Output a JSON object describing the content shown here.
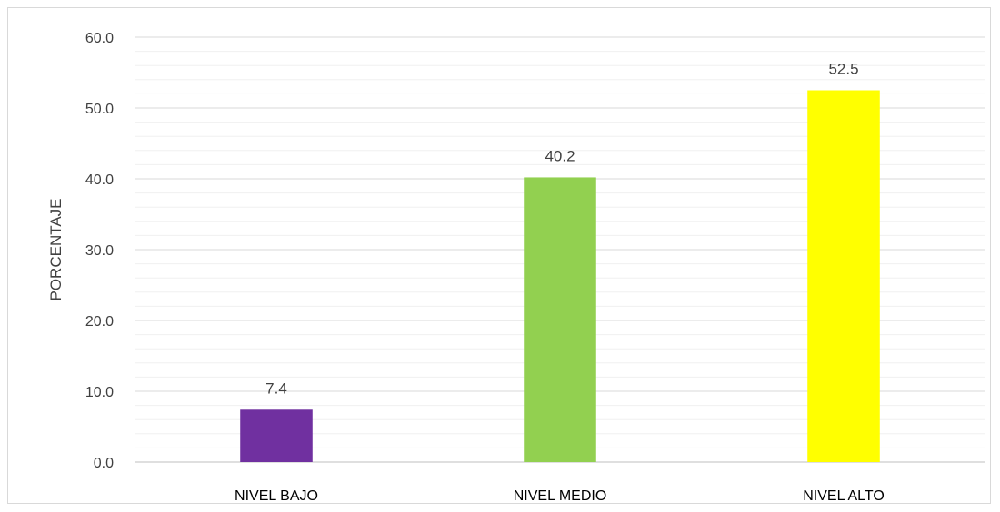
{
  "chart_data": {
    "type": "bar",
    "title": "",
    "xlabel": "",
    "ylabel": "PORCENTAJE",
    "categories": [
      "NIVEL BAJO",
      "NIVEL MEDIO",
      "NIVEL ALTO"
    ],
    "values": [
      7.4,
      40.2,
      52.5
    ],
    "data_labels": [
      "7.4",
      "40.2",
      "52.5"
    ],
    "bar_colors": [
      "#7030a0",
      "#92d050",
      "#ffff00"
    ],
    "ylim": [
      0,
      60
    ],
    "major_ticks": [
      0,
      10,
      20,
      30,
      40,
      50,
      60
    ],
    "tick_labels": [
      "0.0",
      "10.0",
      "20.0",
      "30.0",
      "40.0",
      "50.0",
      "60.0"
    ],
    "minor_tick_step": 2,
    "grid": true,
    "grid_color": "#d9d9d9",
    "minor_grid_color": "#f0f0f0",
    "legend": "none"
  }
}
